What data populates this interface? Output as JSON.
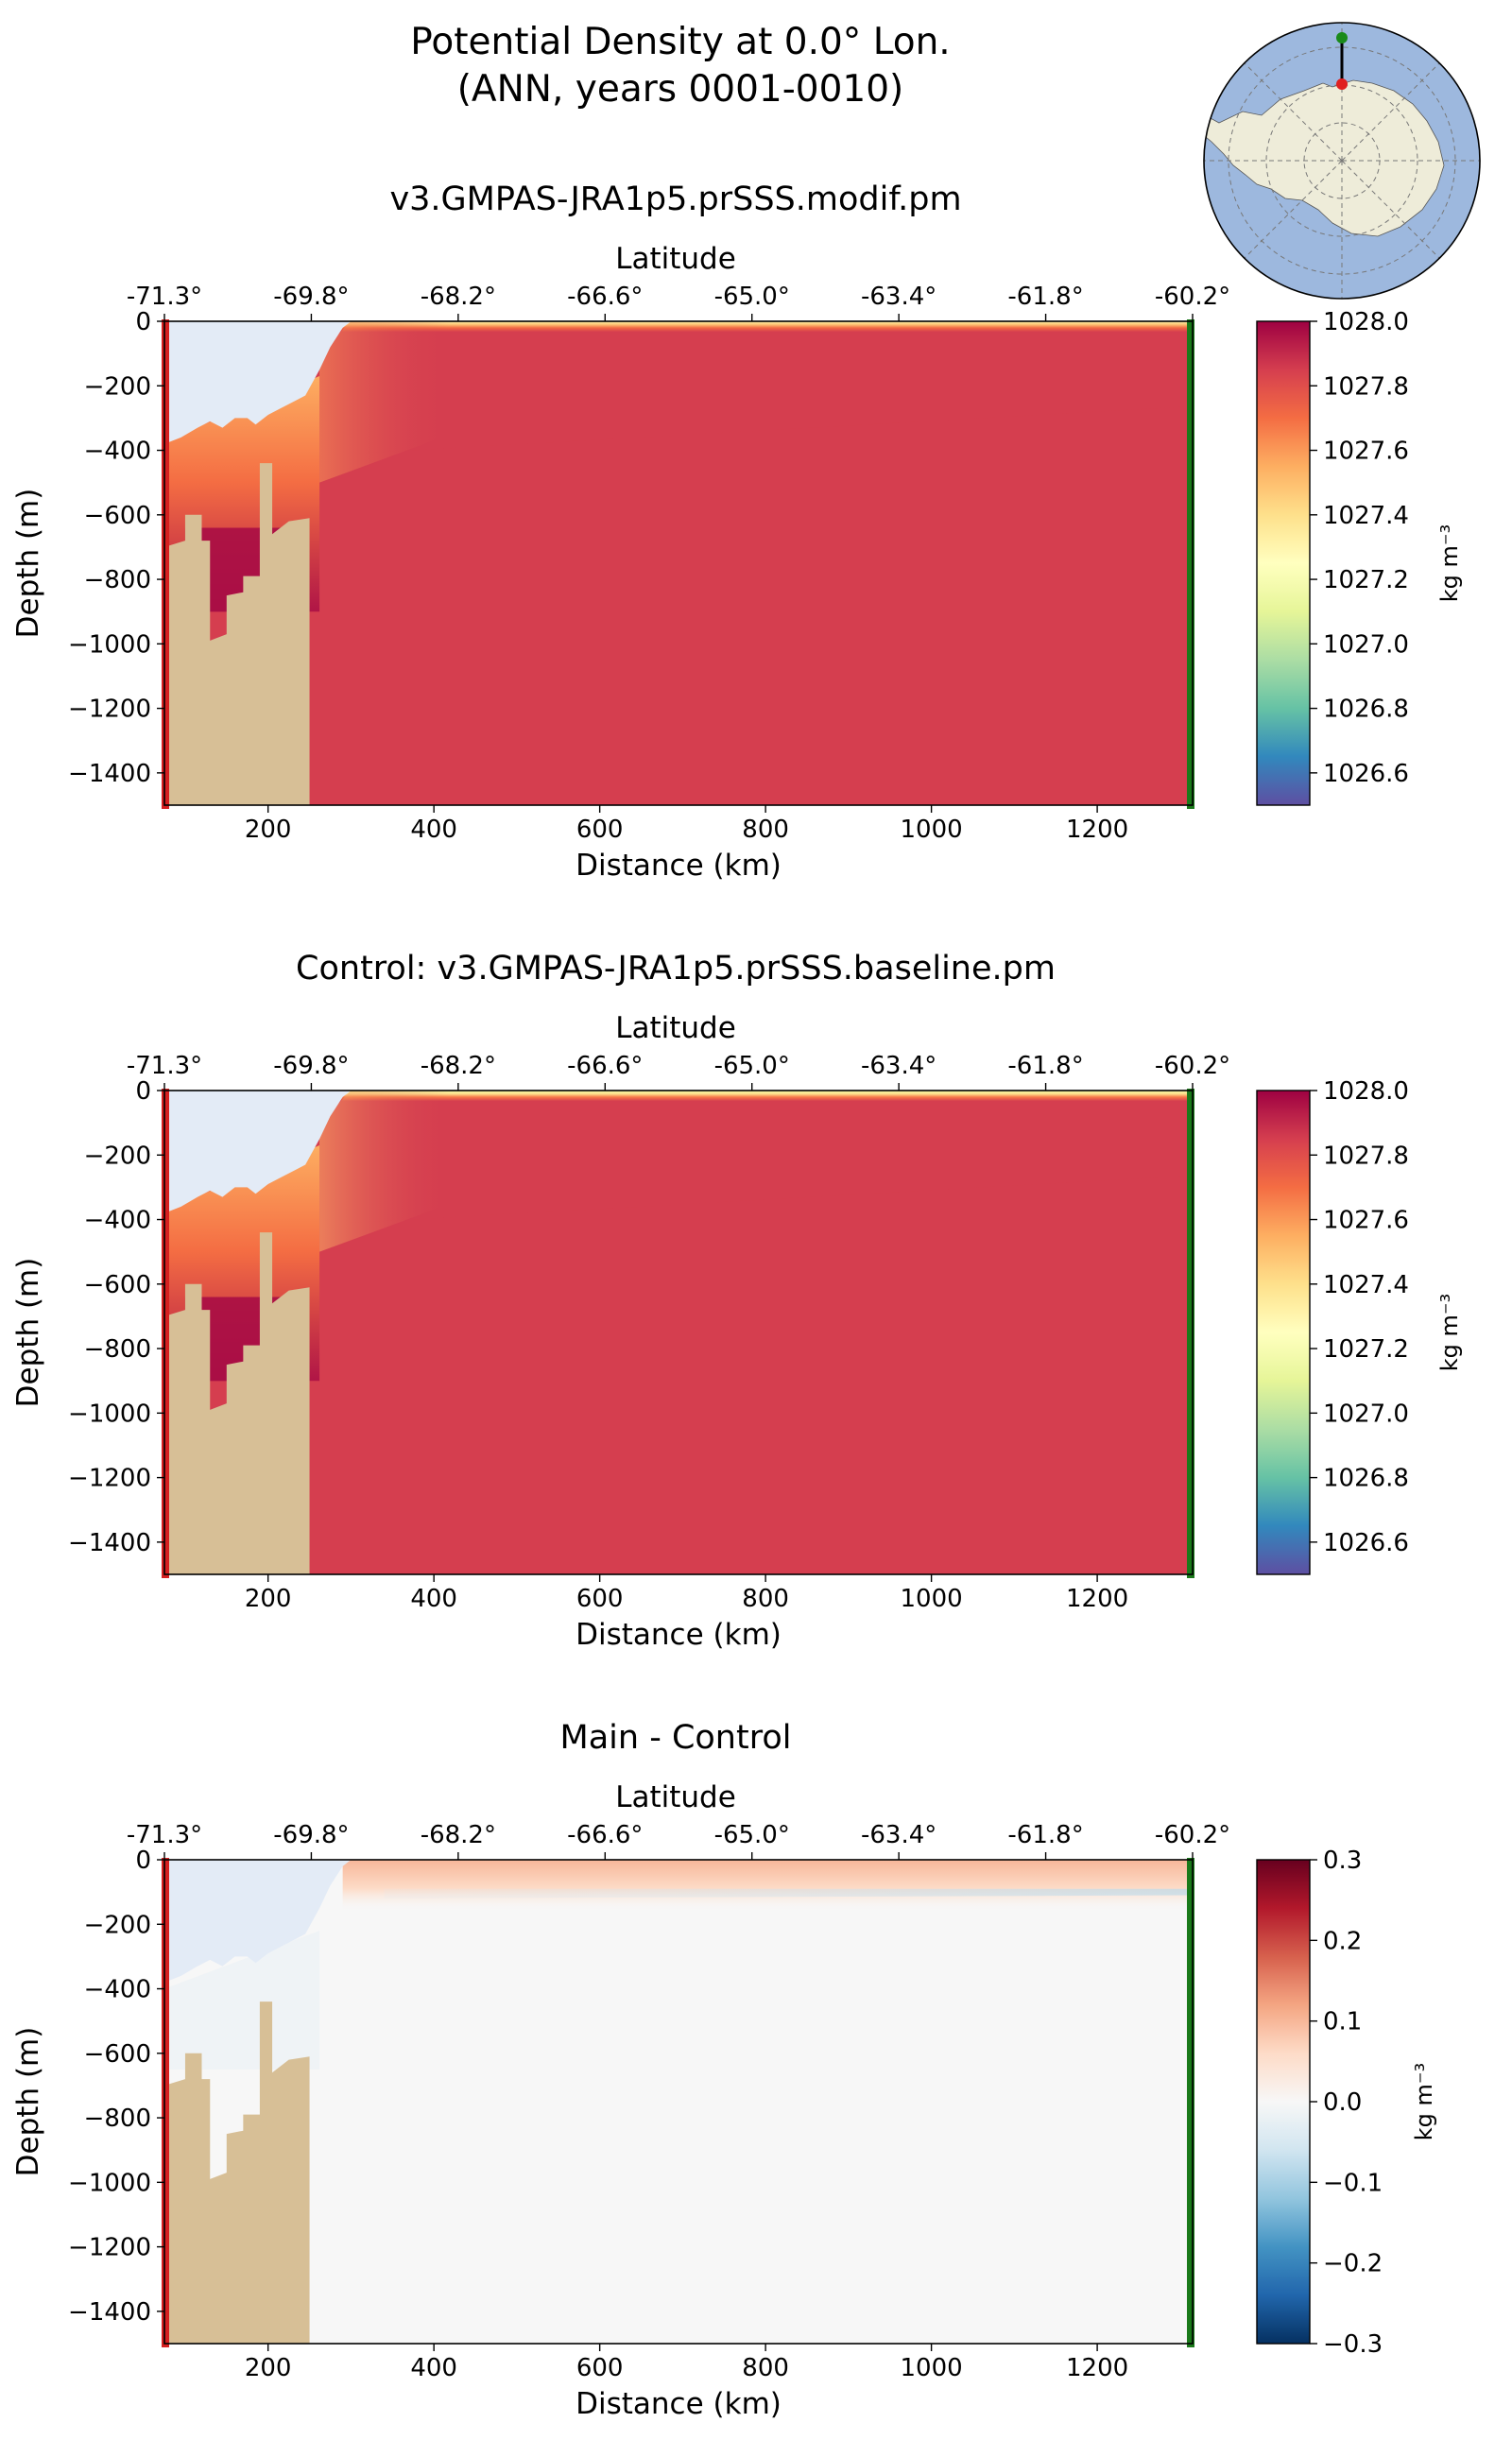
{
  "figure": {
    "title_line1": "Potential Density at 0.0° Lon.",
    "title_line2": "(ANN, years 0001-0010)"
  },
  "colors": {
    "ice_shelf": "#e3ebf6",
    "land": "#d7bf96",
    "start_marker": "#d62020",
    "end_marker": "#1a7a1a",
    "map_ocean": "#9db8de",
    "map_land": "#eeecd9",
    "map_track": "#000000",
    "map_start_point": "#e02020",
    "map_end_point": "#1a8a1a"
  },
  "chart_data": [
    {
      "type": "heatmap",
      "id": "main",
      "title": "v3.GMPAS-JRA1p5.prSSS.modif.pm",
      "xlabel": "Distance (km)",
      "ylabel": "Depth (m)",
      "top_axis_label": "Latitude",
      "xlim": [
        75,
        1315
      ],
      "ylim": [
        -1500,
        0
      ],
      "x_ticks": [
        200,
        400,
        600,
        800,
        1000,
        1200
      ],
      "y_ticks": [
        0,
        -200,
        -400,
        -600,
        -800,
        -1000,
        -1200,
        -1400
      ],
      "latitude_ticks": [
        "-71.3°",
        "-69.8°",
        "-68.2°",
        "-66.6°",
        "-65.0°",
        "-63.4°",
        "-61.8°",
        "-60.2°"
      ],
      "colorbar": {
        "label": "kg m⁻³",
        "cmap": "Spectral_r",
        "vmin": 1026.5,
        "vmax": 1028.0,
        "ticks": [
          1028.0,
          1027.8,
          1027.6,
          1027.4,
          1027.2,
          1027.0,
          1026.8,
          1026.6
        ]
      },
      "interior_density": 1027.85,
      "surface_density": 1027.3
    },
    {
      "type": "heatmap",
      "id": "control",
      "title": "Control: v3.GMPAS-JRA1p5.prSSS.baseline.pm",
      "xlabel": "Distance (km)",
      "ylabel": "Depth (m)",
      "top_axis_label": "Latitude",
      "xlim": [
        75,
        1315
      ],
      "ylim": [
        -1500,
        0
      ],
      "x_ticks": [
        200,
        400,
        600,
        800,
        1000,
        1200
      ],
      "y_ticks": [
        0,
        -200,
        -400,
        -600,
        -800,
        -1000,
        -1200,
        -1400
      ],
      "latitude_ticks": [
        "-71.3°",
        "-69.8°",
        "-68.2°",
        "-66.6°",
        "-65.0°",
        "-63.4°",
        "-61.8°",
        "-60.2°"
      ],
      "colorbar": {
        "label": "kg m⁻³",
        "cmap": "Spectral_r",
        "vmin": 1026.5,
        "vmax": 1028.0,
        "ticks": [
          1028.0,
          1027.8,
          1027.6,
          1027.4,
          1027.2,
          1027.0,
          1026.8,
          1026.6
        ]
      },
      "interior_density": 1027.85,
      "surface_density": 1027.15
    },
    {
      "type": "heatmap",
      "id": "diff",
      "title": "Main - Control",
      "xlabel": "Distance (km)",
      "ylabel": "Depth (m)",
      "top_axis_label": "Latitude",
      "xlim": [
        75,
        1315
      ],
      "ylim": [
        -1500,
        0
      ],
      "x_ticks": [
        200,
        400,
        600,
        800,
        1000,
        1200
      ],
      "y_ticks": [
        0,
        -200,
        -400,
        -600,
        -800,
        -1000,
        -1200,
        -1400
      ],
      "latitude_ticks": [
        "-71.3°",
        "-69.8°",
        "-68.2°",
        "-66.6°",
        "-65.0°",
        "-63.4°",
        "-61.8°",
        "-60.2°"
      ],
      "colorbar": {
        "label": "kg m⁻³",
        "cmap": "RdBu_r",
        "vmin": -0.3,
        "vmax": 0.3,
        "ticks": [
          0.3,
          0.2,
          0.1,
          0.0,
          -0.1,
          -0.2,
          -0.3
        ]
      },
      "surface_difference": 0.1,
      "thermocline_difference": -0.05,
      "interior_difference": 0.0
    }
  ]
}
